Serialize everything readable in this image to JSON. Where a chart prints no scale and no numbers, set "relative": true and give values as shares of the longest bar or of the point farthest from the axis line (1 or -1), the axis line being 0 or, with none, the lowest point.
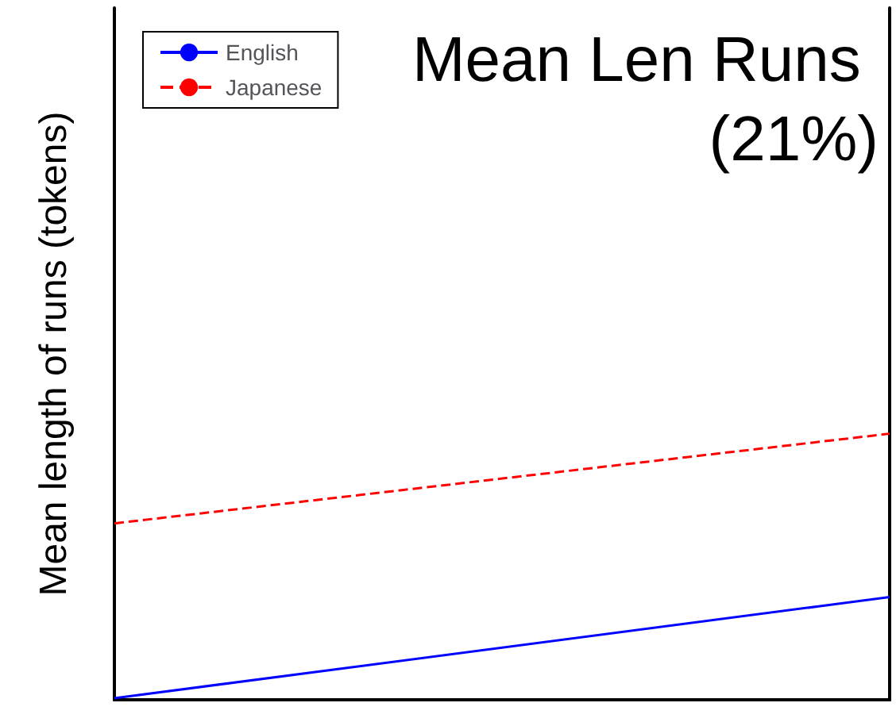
{
  "chart_data": {
    "type": "line",
    "title": "Mean Len Runs (21%)",
    "ylabel": "Mean length of runs (tokens)",
    "relative": true,
    "categories": [
      null,
      null
    ],
    "legend": "top left",
    "grid": false,
    "series": [
      {
        "name": "English",
        "color": "#0000ff",
        "values": [
          0.006,
          0.386
        ],
        "line_style": "solid"
      },
      {
        "name": "Japanese",
        "color": "#ff0000",
        "values": [
          0.663,
          1
        ],
        "line_style": "dashed"
      }
    ]
  }
}
